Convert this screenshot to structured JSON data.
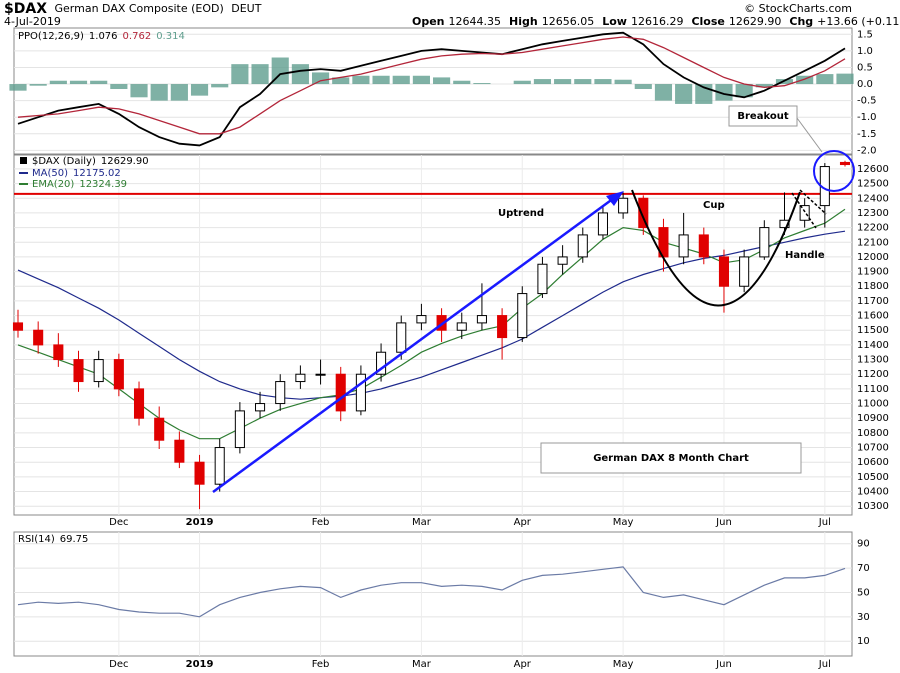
{
  "header": {
    "symbol": "$DAX",
    "name": "German DAX Composite (EOD)",
    "exchange": "DEUT",
    "date": "4-Jul-2019",
    "quote": [
      {
        "label": "Open",
        "value": "12644.35"
      },
      {
        "label": "High",
        "value": "12656.05"
      },
      {
        "label": "Low",
        "value": "12616.29"
      },
      {
        "label": "Close",
        "value": "12629.90"
      },
      {
        "label": "Chg",
        "value": "+13.66 (+0.11%)"
      }
    ],
    "credit": "© StockCharts.com"
  },
  "chart_data": [
    {
      "type": "indicator",
      "title": "PPO(12,26,9)",
      "series": [
        {
          "type": "line",
          "color": "#000000",
          "values": [
            -1.2,
            -1.0,
            -0.8,
            -0.7,
            -0.6,
            -0.9,
            -1.3,
            -1.6,
            -1.8,
            -1.85,
            -1.6,
            -0.7,
            -0.3,
            0.3,
            0.4,
            0.45,
            0.4,
            0.55,
            0.7,
            0.85,
            1.0,
            1.05,
            1.0,
            0.95,
            0.9,
            1.05,
            1.2,
            1.3,
            1.4,
            1.5,
            1.55,
            1.2,
            0.6,
            0.2,
            -0.1,
            -0.3,
            -0.4,
            -0.2,
            0.1,
            0.4,
            0.7,
            1.076
          ]
        },
        {
          "type": "line",
          "color": "#b3263a",
          "values": [
            -1.0,
            -0.95,
            -0.9,
            -0.8,
            -0.7,
            -0.75,
            -0.9,
            -1.1,
            -1.3,
            -1.5,
            -1.5,
            -1.3,
            -0.9,
            -0.5,
            -0.2,
            0.1,
            0.2,
            0.3,
            0.45,
            0.6,
            0.75,
            0.85,
            0.9,
            0.92,
            0.9,
            0.95,
            1.05,
            1.15,
            1.25,
            1.35,
            1.42,
            1.35,
            1.1,
            0.8,
            0.5,
            0.2,
            0.0,
            -0.1,
            -0.05,
            0.15,
            0.4,
            0.762
          ]
        },
        {
          "type": "bar",
          "color": "#5f9e8e",
          "values": [
            -0.2,
            -0.05,
            0.1,
            0.1,
            0.1,
            -0.15,
            -0.4,
            -0.5,
            -0.5,
            -0.35,
            -0.1,
            0.6,
            0.6,
            0.8,
            0.6,
            0.35,
            0.2,
            0.25,
            0.25,
            0.25,
            0.25,
            0.2,
            0.1,
            0.03,
            0,
            0.1,
            0.15,
            0.15,
            0.15,
            0.15,
            0.13,
            -0.15,
            -0.5,
            -0.6,
            -0.6,
            -0.5,
            -0.4,
            -0.1,
            0.15,
            0.25,
            0.3,
            0.314
          ]
        }
      ],
      "ylim": [
        -2.05,
        1.63
      ],
      "yticks": [
        1.5,
        {
          "value": 1,
          "label": "1.0"
        },
        0.5,
        {
          "value": 0,
          "label": "0.0"
        },
        -0.5,
        {
          "value": -1,
          "label": "-1.0"
        },
        -1.5,
        {
          "value": -2,
          "label": "-2.0"
        }
      ],
      "grid": true
    },
    {
      "type": "candlestick",
      "title": "$DAX (Daily)",
      "value_label": "12629.90",
      "up_color": "#000000",
      "down_color": "#e00000",
      "categories": [
        null,
        null,
        null,
        null,
        null,
        "Dec",
        null,
        null,
        null,
        "2019",
        null,
        null,
        null,
        null,
        null,
        "Feb",
        null,
        null,
        null,
        null,
        "Mar",
        null,
        null,
        null,
        null,
        "Apr",
        null,
        null,
        null,
        null,
        "May",
        null,
        null,
        null,
        null,
        "Jun",
        null,
        null,
        null,
        null,
        "Jul",
        null
      ],
      "ohlc": [
        [
          11550,
          11640,
          11450,
          11500
        ],
        [
          11500,
          11560,
          11340,
          11400
        ],
        [
          11400,
          11480,
          11250,
          11300
        ],
        [
          11300,
          11360,
          11080,
          11150
        ],
        [
          11150,
          11360,
          11110,
          11300
        ],
        [
          11300,
          11340,
          11050,
          11100
        ],
        [
          11100,
          11150,
          10850,
          10900
        ],
        [
          10900,
          10980,
          10690,
          10750
        ],
        [
          10750,
          10810,
          10560,
          10600
        ],
        [
          10600,
          10650,
          10280,
          10450
        ],
        [
          10450,
          10760,
          10400,
          10700
        ],
        [
          10700,
          11010,
          10660,
          10950
        ],
        [
          10950,
          11080,
          10900,
          11000
        ],
        [
          11000,
          11200,
          10950,
          11150
        ],
        [
          11150,
          11260,
          11100,
          11200
        ],
        [
          11200,
          11300,
          11130,
          11200
        ],
        [
          11200,
          11250,
          10880,
          10950
        ],
        [
          10950,
          11260,
          10920,
          11200
        ],
        [
          11200,
          11410,
          11150,
          11350
        ],
        [
          11350,
          11600,
          11300,
          11550
        ],
        [
          11550,
          11680,
          11500,
          11600
        ],
        [
          11600,
          11650,
          11420,
          11500
        ],
        [
          11500,
          11620,
          11440,
          11550
        ],
        [
          11550,
          11820,
          11500,
          11600
        ],
        [
          11600,
          11650,
          11300,
          11450
        ],
        [
          11450,
          11800,
          11420,
          11750
        ],
        [
          11750,
          12000,
          11720,
          11950
        ],
        [
          11950,
          12080,
          11880,
          12000
        ],
        [
          12000,
          12200,
          11960,
          12150
        ],
        [
          12150,
          12350,
          12120,
          12300
        ],
        [
          12300,
          12440,
          12260,
          12400
        ],
        [
          12400,
          12420,
          12150,
          12200
        ],
        [
          12200,
          12260,
          11900,
          12000
        ],
        [
          12000,
          12300,
          11950,
          12150
        ],
        [
          12150,
          12200,
          11950,
          12000
        ],
        [
          12000,
          12050,
          11620,
          11800
        ],
        [
          11800,
          12050,
          11760,
          12000
        ],
        [
          12000,
          12250,
          11980,
          12200
        ],
        [
          12200,
          12440,
          12150,
          12250
        ],
        [
          12250,
          12400,
          12200,
          12350
        ],
        [
          12350,
          12640,
          12200,
          12616.24
        ],
        [
          12644.35,
          12656.05,
          12616.29,
          12629.9
        ]
      ],
      "series": [
        {
          "name": "MA(50)",
          "color": "#1f2a8c",
          "values": [
            11910,
            11850,
            11790,
            11720,
            11650,
            11570,
            11480,
            11390,
            11300,
            11220,
            11150,
            11100,
            11060,
            11040,
            11030,
            11040,
            11050,
            11070,
            11100,
            11140,
            11180,
            11230,
            11280,
            11330,
            11380,
            11440,
            11520,
            11600,
            11680,
            11760,
            11830,
            11880,
            11920,
            11960,
            11990,
            12010,
            12040,
            12070,
            12100,
            12130,
            12155,
            12175.02
          ]
        },
        {
          "name": "EMA(20)",
          "color": "#2e7d32",
          "values": [
            11400,
            11350,
            11300,
            11250,
            11200,
            11100,
            11000,
            10900,
            10820,
            10760,
            10760,
            10830,
            10900,
            10960,
            11000,
            11040,
            11060,
            11100,
            11180,
            11260,
            11350,
            11410,
            11460,
            11500,
            11530,
            11650,
            11750,
            11880,
            12000,
            12120,
            12200,
            12180,
            12100,
            12060,
            12020,
            11960,
            11980,
            12050,
            12130,
            12180,
            12230,
            12324.39
          ]
        }
      ],
      "ylim": [
        10240,
        12695
      ],
      "yticks": [
        10300,
        10400,
        10500,
        10600,
        10700,
        10800,
        10900,
        11000,
        11100,
        11200,
        11300,
        11400,
        11500,
        11600,
        11700,
        11800,
        11900,
        12000,
        12100,
        12200,
        12300,
        12400,
        12500,
        12600
      ],
      "grid": true,
      "resistance": {
        "value": 12430,
        "color": "#e00000"
      },
      "annotations": [
        "Uptrend",
        "Cup",
        "Handle",
        "Breakout",
        "German DAX 8 Month Chart"
      ]
    },
    {
      "type": "line",
      "title": "RSI(14)",
      "categories": [
        null,
        null,
        null,
        null,
        null,
        "Dec",
        null,
        null,
        null,
        "2019",
        null,
        null,
        null,
        null,
        null,
        "Feb",
        null,
        null,
        null,
        null,
        "Mar",
        null,
        null,
        null,
        null,
        "Apr",
        null,
        null,
        null,
        null,
        "May",
        null,
        null,
        null,
        null,
        "Jun",
        null,
        null,
        null,
        null,
        "Jul",
        null
      ],
      "series": [
        {
          "color": "#6b7ba6",
          "values": [
            40,
            42,
            41,
            42,
            40,
            36,
            34,
            33,
            33,
            30,
            40,
            46,
            50,
            53,
            55,
            54,
            46,
            52,
            56,
            58,
            58,
            55,
            56,
            55,
            52,
            60,
            64,
            65,
            67,
            69,
            71,
            50,
            46,
            48,
            44,
            40,
            48,
            56,
            62,
            62,
            64,
            69.75
          ]
        }
      ],
      "ylim": [
        -0.5,
        98
      ],
      "yticks": [
        90,
        70,
        50,
        30,
        10
      ],
      "grid": true
    }
  ]
}
